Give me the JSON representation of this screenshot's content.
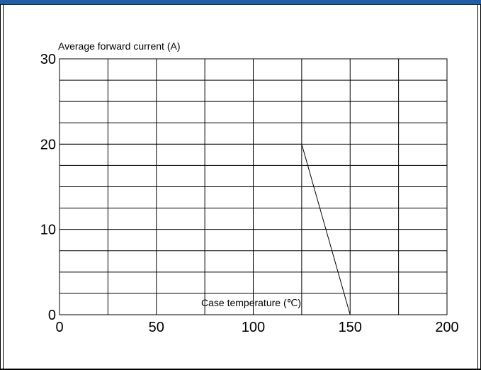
{
  "chart_data": {
    "type": "line",
    "title": "",
    "ylabel": "Average forward current (A)",
    "xlabel": "Case temperature (℃)",
    "xlim": [
      0,
      200
    ],
    "ylim": [
      0,
      30
    ],
    "x_ticks": [
      0,
      50,
      100,
      150,
      200
    ],
    "y_ticks": [
      0,
      10,
      20,
      30
    ],
    "x_tick_labels": [
      "0",
      "50",
      "100",
      "150",
      "200"
    ],
    "y_tick_labels": [
      "0",
      "10",
      "20",
      "30"
    ],
    "grid": true,
    "x_grid_step": 25,
    "y_grid_step": 2.5,
    "series": [
      {
        "x": [
          0,
          120,
          125,
          150
        ],
        "y": [
          20,
          20,
          20,
          0
        ]
      }
    ]
  }
}
